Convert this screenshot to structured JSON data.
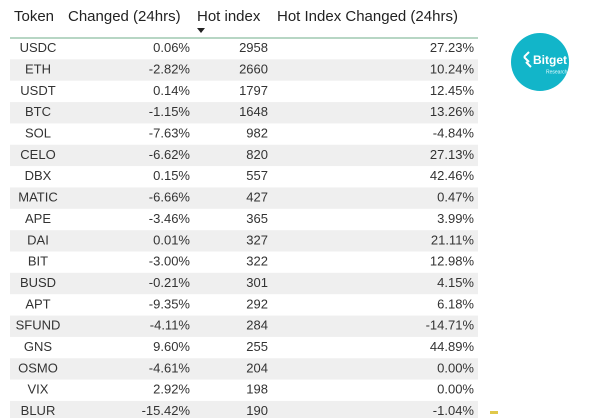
{
  "table": {
    "headers": [
      "Token",
      "Changed (24hrs)",
      "Hot index",
      "Hot Index Changed (24hrs)"
    ],
    "rows": [
      [
        "USDC",
        "0.06%",
        "2958",
        "27.23%"
      ],
      [
        "ETH",
        "-2.82%",
        "2660",
        "10.24%"
      ],
      [
        "USDT",
        "0.14%",
        "1797",
        "12.45%"
      ],
      [
        "BTC",
        "-1.15%",
        "1648",
        "13.26%"
      ],
      [
        "SOL",
        "-7.63%",
        "982",
        "-4.84%"
      ],
      [
        "CELO",
        "-6.62%",
        "820",
        "27.13%"
      ],
      [
        "DBX",
        "0.15%",
        "557",
        "42.46%"
      ],
      [
        "MATIC",
        "-6.66%",
        "427",
        "0.47%"
      ],
      [
        "APE",
        "-3.46%",
        "365",
        "3.99%"
      ],
      [
        "DAI",
        "0.01%",
        "327",
        "21.11%"
      ],
      [
        "BIT",
        "-3.00%",
        "322",
        "12.98%"
      ],
      [
        "BUSD",
        "-0.21%",
        "301",
        "4.15%"
      ],
      [
        "APT",
        "-9.35%",
        "292",
        "6.18%"
      ],
      [
        "SFUND",
        "-4.11%",
        "284",
        "-14.71%"
      ],
      [
        "GNS",
        "9.60%",
        "255",
        "44.89%"
      ],
      [
        "OSMO",
        "-4.61%",
        "204",
        "0.00%"
      ],
      [
        "VIX",
        "2.92%",
        "198",
        "0.00%"
      ],
      [
        "BLUR",
        "-15.42%",
        "190",
        "-1.04%"
      ]
    ]
  },
  "logo": {
    "name": "Bitget",
    "subtitle": "Research"
  }
}
